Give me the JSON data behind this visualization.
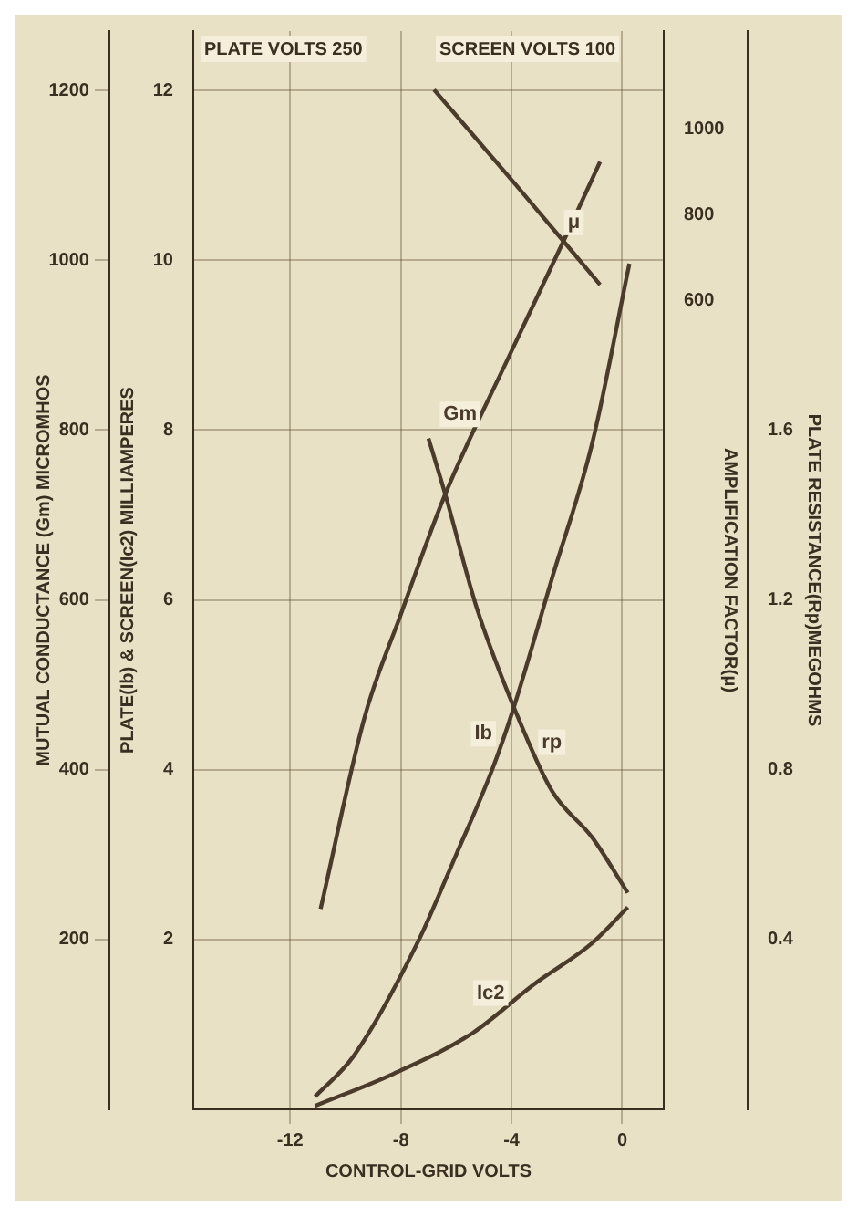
{
  "chart_data": [
    {
      "type": "line",
      "annotations": [
        "PLATE VOLTS 250",
        "SCREEN VOLTS 100"
      ],
      "xlabel": "CONTROL-GRID VOLTS",
      "ylabel": "MUTUAL CONDUCTANCE (Gm) MICROMHOS",
      "y2label": "PLATE(Ib) & SCREEN(Ic2) MILLIAMPERES",
      "xlim": [
        -15.5,
        1.5
      ],
      "xticks": [
        -12,
        -8,
        -4,
        0
      ],
      "ylim": [
        0,
        1270
      ],
      "yticks": [
        200,
        400,
        600,
        800,
        1000,
        1200
      ],
      "y2lim": [
        0,
        12.7
      ],
      "y2ticks": [
        2,
        4,
        6,
        8,
        10,
        12
      ],
      "grid": true,
      "legend": false,
      "marker": "none",
      "line_style": "solid",
      "series": [
        {
          "name": "Gm",
          "color": "#4a3b2a",
          "x": [
            -10.9,
            -9.3,
            -8,
            -6.4,
            -4,
            -2,
            -0.8
          ],
          "values": [
            236,
            463,
            583,
            724,
            893,
            1031,
            1116
          ]
        },
        {
          "name": "Ib",
          "color": "#4a3b2a",
          "axis": "y2",
          "x": [
            -11.1,
            -9.7,
            -7.4,
            -6.0,
            -4.7,
            -3.96,
            -2.54,
            -1.08,
            0.26
          ],
          "values": [
            0.15,
            0.63,
            1.96,
            3.0,
            4.0,
            4.69,
            6.25,
            7.85,
            9.96
          ]
        },
        {
          "name": "Ic2",
          "color": "#4a3b2a",
          "axis": "y2",
          "x": [
            -11.1,
            -8.26,
            -5.4,
            -3.2,
            -1.08,
            0.2
          ],
          "values": [
            0.04,
            0.42,
            0.9,
            1.47,
            1.96,
            2.38
          ]
        }
      ]
    },
    {
      "type": "line",
      "ylabel": "PLATE RESISTANCE(Rp)MEGOHMS",
      "y2label": "AMPLIFICATION FACTOR(μ)",
      "xlim": [
        -15.5,
        1.5
      ],
      "xticks": [
        -12,
        -8,
        -4,
        0
      ],
      "ylim": [
        0,
        2.54
      ],
      "yticks": [
        0.4,
        0.8,
        1.2,
        1.6
      ],
      "y2lim": [
        -1287,
        1229
      ],
      "y2ticks": [
        600,
        800,
        1000
      ],
      "tick_labels": "y",
      "series": [
        {
          "name": "rp",
          "color": "#4a3b2a",
          "x": [
            -7.0,
            -6.4,
            -5.25,
            -3.87,
            -2.54,
            -1.08,
            0.2
          ],
          "values": [
            1.58,
            1.45,
            1.18,
            0.94,
            0.75,
            0.64,
            0.51
          ]
        },
        {
          "name": "μ",
          "color": "#4a3b2a",
          "axis": "y2",
          "x": [
            -6.8,
            -3.8,
            -0.8
          ],
          "values": [
            1092,
            867,
            637
          ]
        }
      ]
    }
  ]
}
